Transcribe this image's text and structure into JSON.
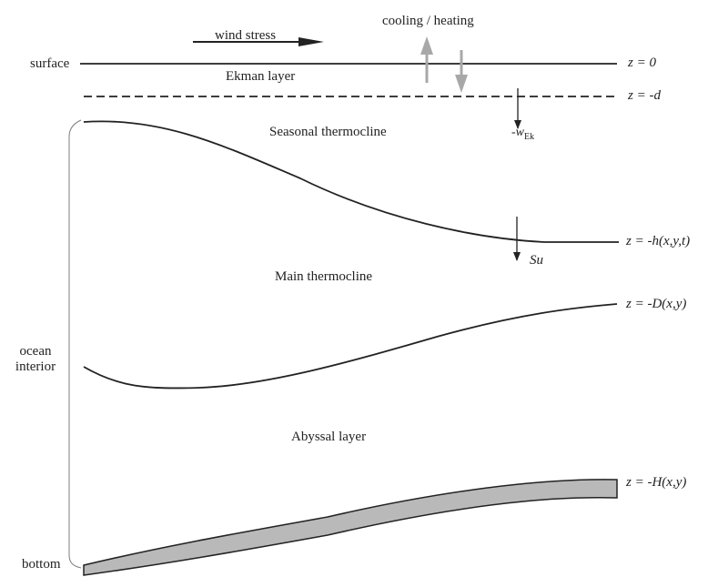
{
  "labels": {
    "wind_stress": "wind stress",
    "cooling_heating": "cooling / heating",
    "surface": "surface",
    "ekman_layer": "Ekman layer",
    "z0": "z = 0",
    "zd": "z = -d",
    "w_ek": "-w",
    "w_ek_sub": "Ek",
    "seasonal_thermocline": "Seasonal thermocline",
    "zh": "z = -h(x,y,t)",
    "su": "Su",
    "main_thermocline": "Main thermocline",
    "zD": "z = -D(x,y)",
    "ocean_interior_1": "ocean",
    "ocean_interior_2": "interior",
    "abyssal_layer": "Abyssal layer",
    "zH": "z = -H(x,y)",
    "bottom": "bottom"
  },
  "colors": {
    "line": "#222222",
    "arrow_gray": "#a8a8a8",
    "seafloor_fill": "#b9b9b9"
  }
}
